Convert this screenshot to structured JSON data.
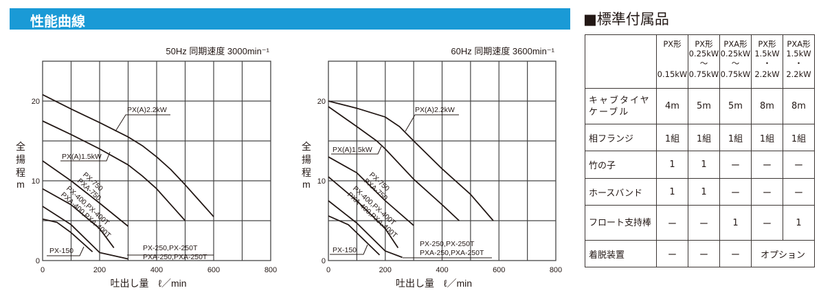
{
  "header": {
    "title": "性能曲線",
    "accessories_title": "■標準付属品"
  },
  "chart_data": [
    {
      "type": "line",
      "title": "50Hz 同期速度 3000min⁻¹",
      "xlabel": "吐出し量　ℓ／min",
      "ylabel": [
        "全",
        "揚",
        "程",
        "m"
      ],
      "xlim": [
        0,
        800
      ],
      "ylim": [
        0,
        25
      ],
      "grid": true,
      "xticks": [
        "0",
        "200",
        "400",
        "600",
        "800"
      ],
      "yticks": [
        "0",
        "10",
        "20"
      ],
      "series": [
        {
          "name": "PX(A)2.2kW",
          "points": [
            [
              0,
              20.8
            ],
            [
              100,
              19
            ],
            [
              200,
              17.3
            ],
            [
              300,
              15.5
            ],
            [
              350,
              14.4
            ],
            [
              400,
              13
            ],
            [
              450,
              11.4
            ],
            [
              500,
              9.5
            ],
            [
              550,
              7.5
            ],
            [
              600,
              5.5
            ]
          ]
        },
        {
          "name": "PX(A)1.5kW",
          "points": [
            [
              0,
              17.5
            ],
            [
              100,
              15.8
            ],
            [
              200,
              14
            ],
            [
              250,
              13
            ],
            [
              300,
              12
            ],
            [
              350,
              10.6
            ],
            [
              400,
              9
            ],
            [
              450,
              7
            ],
            [
              500,
              5
            ]
          ]
        },
        {
          "name": "PX-750\nPXA-750",
          "points": [
            [
              0,
              12.5
            ],
            [
              100,
              10
            ],
            [
              200,
              7.2
            ],
            [
              300,
              4.3
            ]
          ]
        },
        {
          "name": "PX-400,PX-400T\nPXA-400,PXA-400T",
          "points": [
            [
              0,
              9
            ],
            [
              100,
              7
            ],
            [
              200,
              4
            ],
            [
              250,
              1.6
            ]
          ]
        },
        {
          "name": "PX-250,PX-250T\nPXA-250,PXA-250T",
          "points": [
            [
              0,
              6.8
            ],
            [
              100,
              4.5
            ],
            [
              200,
              1
            ],
            [
              300,
              0.2
            ]
          ]
        },
        {
          "name": "PX-150",
          "points": [
            [
              0,
              5.2
            ],
            [
              50,
              4.8
            ],
            [
              100,
              3.5
            ],
            [
              175,
              1.1
            ]
          ]
        }
      ]
    },
    {
      "type": "line",
      "title": "60Hz 同期速度 3600min⁻¹",
      "xlabel": "吐出し量　ℓ／min",
      "ylabel": [
        "全",
        "揚",
        "程",
        "m"
      ],
      "xlim": [
        0,
        800
      ],
      "ylim": [
        0,
        25
      ],
      "grid": true,
      "xticks": [
        "0",
        "200",
        "400",
        "600",
        "800"
      ],
      "yticks": [
        "0",
        "10",
        "20"
      ],
      "series": [
        {
          "name": "PX(A)2.2kW",
          "points": [
            [
              0,
              20
            ],
            [
              100,
              19.1
            ],
            [
              200,
              18
            ],
            [
              250,
              16.8
            ],
            [
              300,
              15
            ],
            [
              400,
              11.5
            ],
            [
              500,
              8.3
            ],
            [
              580,
              5
            ]
          ]
        },
        {
          "name": "PX(A)1.5kW",
          "points": [
            [
              0,
              19.3
            ],
            [
              100,
              16.8
            ],
            [
              170,
              15
            ],
            [
              200,
              14
            ],
            [
              300,
              10.2
            ],
            [
              400,
              7
            ],
            [
              460,
              5
            ]
          ]
        },
        {
          "name": "PX-750\nPXA-750",
          "points": [
            [
              0,
              13
            ],
            [
              100,
              11
            ],
            [
              200,
              7.5
            ],
            [
              300,
              4.4
            ]
          ]
        },
        {
          "name": "PX-400,PX-400T\nPXA-400,PXA-400T",
          "points": [
            [
              0,
              10.5
            ],
            [
              100,
              7.5
            ],
            [
              200,
              4
            ],
            [
              245,
              1.6
            ]
          ]
        },
        {
          "name": "PX-250,PX-250T\nPXA-250,PXA-250T",
          "points": [
            [
              0,
              7.5
            ],
            [
              100,
              4.7
            ],
            [
              200,
              1.2
            ],
            [
              260,
              0.4
            ]
          ]
        },
        {
          "name": "PX-150",
          "points": [
            [
              0,
              5.6
            ],
            [
              70,
              4.5
            ],
            [
              180,
              0.7
            ]
          ]
        }
      ]
    }
  ],
  "accessories": {
    "columns": [
      [
        "PX形",
        "",
        "",
        "0.15kW"
      ],
      [
        "PX形",
        "0.25kW",
        "〜",
        "0.75kW"
      ],
      [
        "PXA形",
        "0.25kW",
        "〜",
        "0.75kW"
      ],
      [
        "PX形",
        "1.5kW",
        "・",
        "2.2kW"
      ],
      [
        "PXA形",
        "1.5kW",
        "・",
        "2.2kW"
      ]
    ],
    "rows": [
      {
        "label": "キャブタイヤケーブル",
        "cells": [
          "4m",
          "5m",
          "5m",
          "8m",
          "8m"
        ]
      },
      {
        "label": "相フランジ",
        "cells": [
          "1組",
          "1組",
          "1組",
          "1組",
          "1組"
        ]
      },
      {
        "label": "竹の子",
        "cells": [
          "1",
          "1",
          "ー",
          "ー",
          "ー"
        ]
      },
      {
        "label": "ホースバンド",
        "cells": [
          "1",
          "1",
          "ー",
          "ー",
          "ー"
        ]
      },
      {
        "label": "フロート支持棒",
        "cells": [
          "ー",
          "ー",
          "1",
          "ー",
          "1"
        ]
      },
      {
        "label": "着脱装置",
        "cells": [
          "ー",
          "ー",
          "ー",
          "オプション"
        ]
      }
    ]
  }
}
